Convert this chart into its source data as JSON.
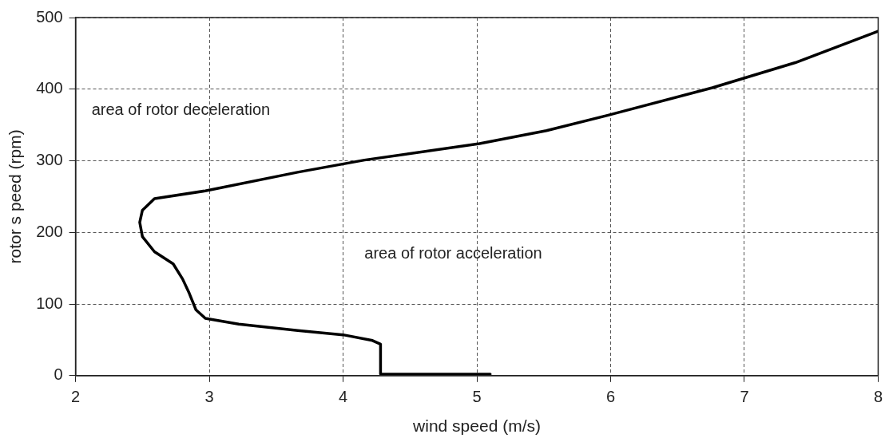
{
  "chart_data": {
    "type": "line",
    "xlabel": "wind speed (m/s)",
    "ylabel": "rotor s peed (rpm)",
    "xlim": [
      2,
      8
    ],
    "xticks": [
      2,
      3,
      4,
      5,
      6,
      7,
      8
    ],
    "ylim": [
      0,
      500
    ],
    "yticks": [
      0,
      100,
      200,
      300,
      400,
      500
    ],
    "grid": true,
    "line_style": "solid",
    "marker": "none",
    "annotations": [
      "area of rotor deceleration",
      "area of rotor acceleration"
    ],
    "series": [
      {
        "color": "#000000",
        "x": [
          5.1,
          4.28,
          4.28,
          4.22,
          4.0,
          3.66,
          3.22,
          2.97,
          2.9,
          2.85,
          2.8,
          2.73,
          2.59,
          2.5,
          2.48,
          2.5,
          2.59,
          2.97,
          3.66,
          4.16,
          5.02,
          5.52,
          6.01,
          6.76,
          7.38,
          8.0
        ],
        "values": [
          2,
          2,
          44,
          49,
          57,
          63,
          72,
          80,
          92,
          115,
          135,
          156,
          173,
          194,
          214,
          231,
          247,
          258,
          284,
          301,
          324,
          342,
          365,
          402,
          437,
          481
        ]
      }
    ]
  }
}
